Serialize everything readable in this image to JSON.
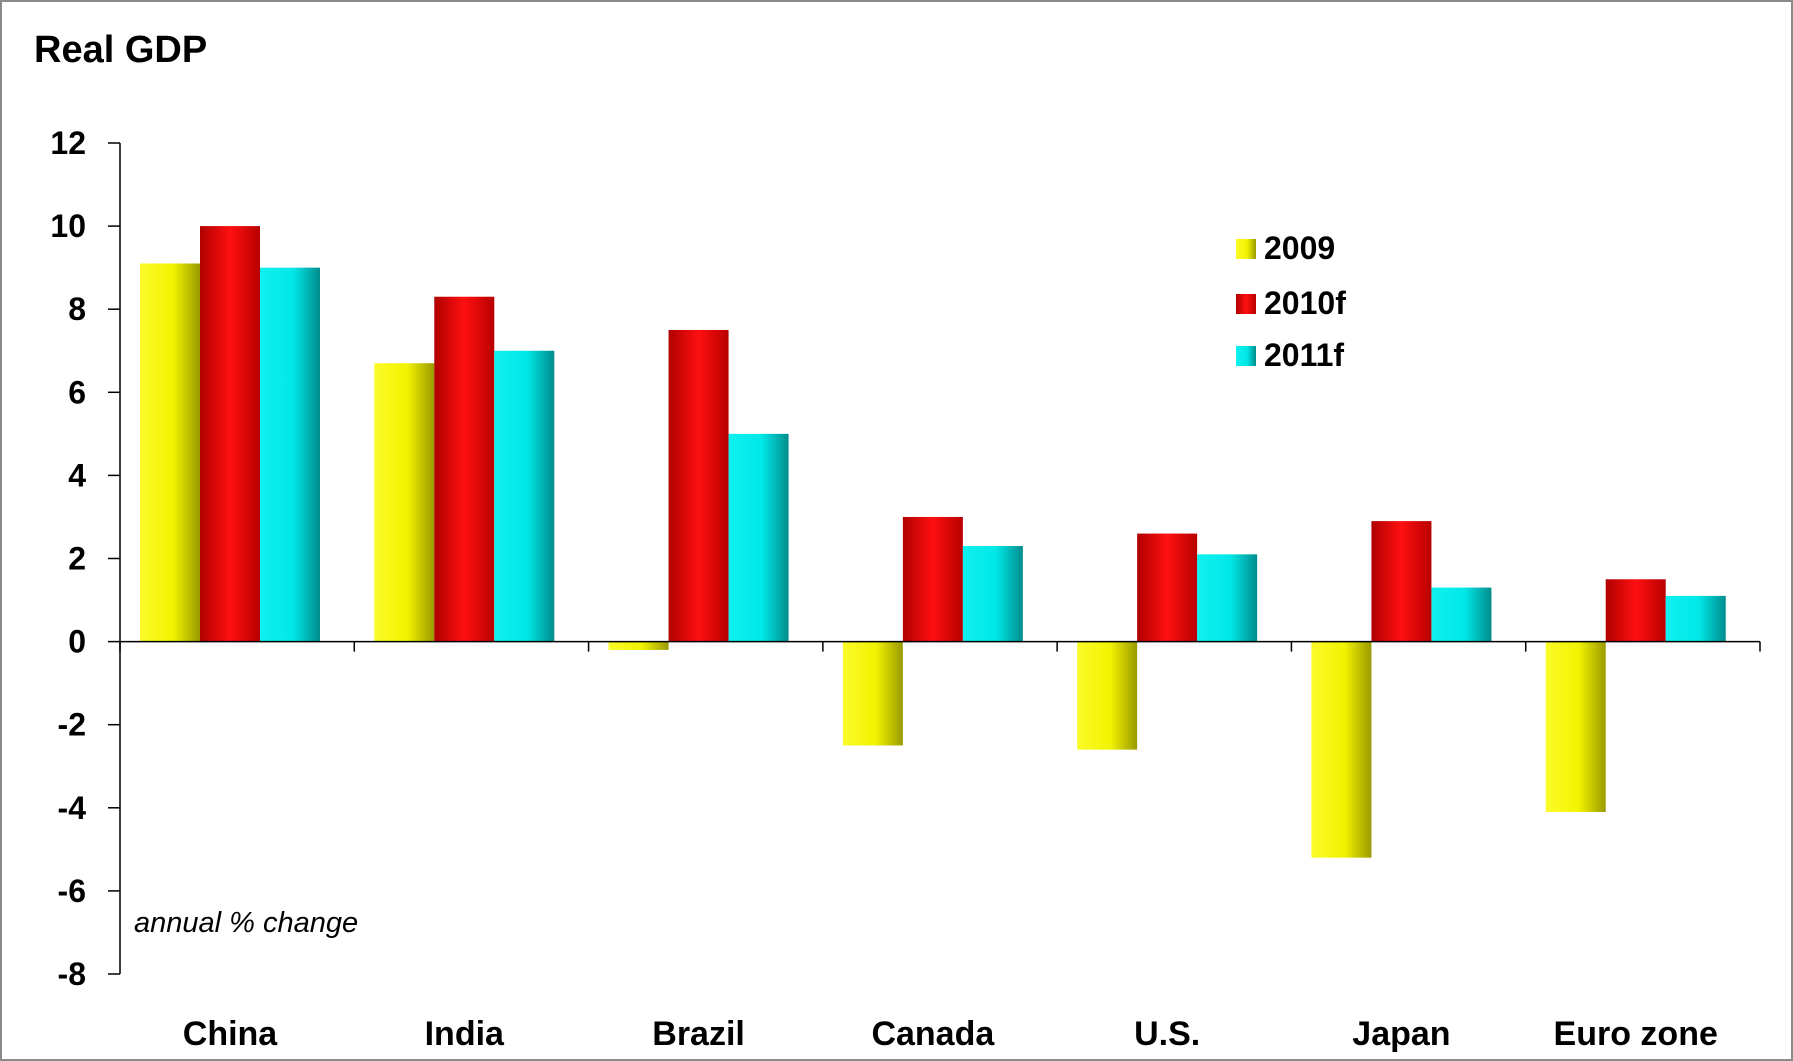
{
  "chart_data": {
    "type": "bar",
    "title": "Real GDP",
    "annotation": "annual % change",
    "categories": [
      "China",
      "India",
      "Brazil",
      "Canada",
      "U.S.",
      "Japan",
      "Euro zone"
    ],
    "series": [
      {
        "name": "2009",
        "color": "#e6e600",
        "values": [
          9.1,
          6.7,
          -0.2,
          -2.5,
          -2.6,
          -5.2,
          -4.1
        ]
      },
      {
        "name": "2010f",
        "color": "#e00000",
        "values": [
          10.0,
          8.3,
          7.5,
          3.0,
          2.6,
          2.9,
          1.5
        ]
      },
      {
        "name": "2011f",
        "color": "#00dddd",
        "values": [
          9.0,
          7.0,
          5.0,
          2.3,
          2.1,
          1.3,
          1.1
        ]
      }
    ],
    "yticks": [
      "12",
      "10",
      "8",
      "6",
      "4",
      "2",
      "0",
      "-2",
      "-4",
      "-6",
      "-8"
    ],
    "ylim": [
      -8,
      12
    ],
    "legend_position": "top-right",
    "grid": false
  }
}
